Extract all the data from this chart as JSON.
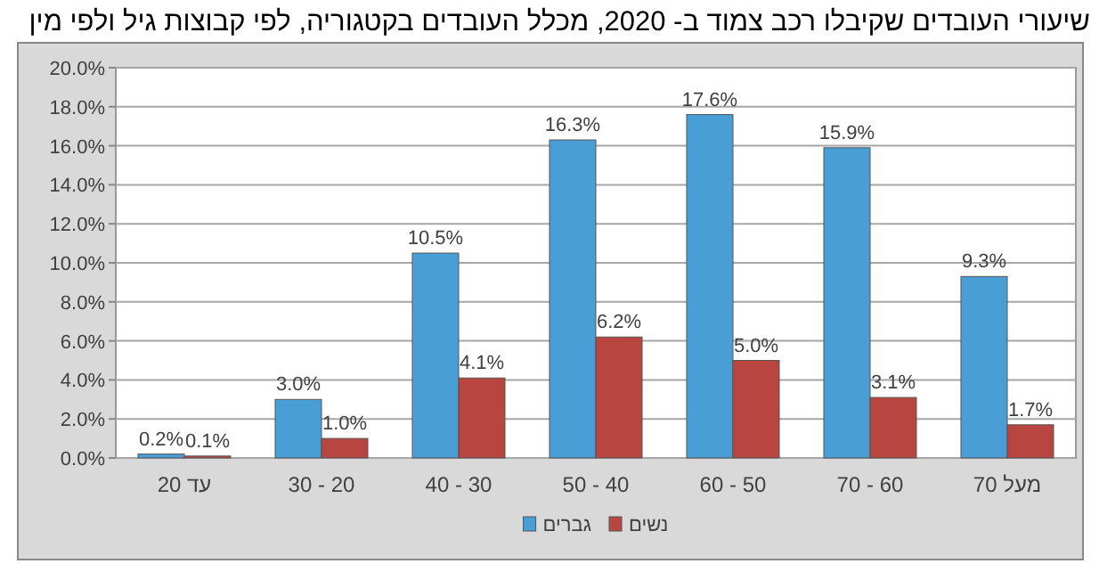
{
  "chart_data": {
    "type": "bar",
    "title": "שיעורי העובדים שקיבלו רכב צמוד ב- 2020, מכלל העובדים בקטגוריה, לפי קבוצות גיל ולפי מין",
    "categories": [
      "עד 20",
      "20 - 30",
      "30 - 40",
      "40 - 50",
      "50 - 60",
      "60 - 70",
      "מעל 70"
    ],
    "series": [
      {
        "name": "גברים",
        "color": "#4a9ed6",
        "values": [
          0.2,
          3.0,
          10.5,
          16.3,
          17.6,
          15.9,
          9.3
        ],
        "value_labels": [
          "0.2%",
          "3.0%",
          "10.5%",
          "16.3%",
          "17.6%",
          "15.9%",
          "9.3%"
        ]
      },
      {
        "name": "נשים",
        "color": "#b8453f",
        "values": [
          0.1,
          1.0,
          4.1,
          6.2,
          5.0,
          3.1,
          1.7
        ],
        "value_labels": [
          "0.1%",
          "1.0%",
          "4.1%",
          "6.2%",
          "5.0%",
          "3.1%",
          "1.7%"
        ]
      }
    ],
    "ylim": [
      0,
      20
    ],
    "yticks": [
      {
        "value": 0,
        "label": "0.0%"
      },
      {
        "value": 2,
        "label": "2.0%"
      },
      {
        "value": 4,
        "label": "4.0%"
      },
      {
        "value": 6,
        "label": "6.0%"
      },
      {
        "value": 8,
        "label": "8.0%"
      },
      {
        "value": 10,
        "label": "10.0%"
      },
      {
        "value": 12,
        "label": "12.0%"
      },
      {
        "value": 14,
        "label": "14.0%"
      },
      {
        "value": 16,
        "label": "16.0%"
      },
      {
        "value": 18,
        "label": "18.0%"
      },
      {
        "value": 20,
        "label": "20.0%"
      }
    ],
    "grid": "y",
    "legend": "bottom"
  }
}
